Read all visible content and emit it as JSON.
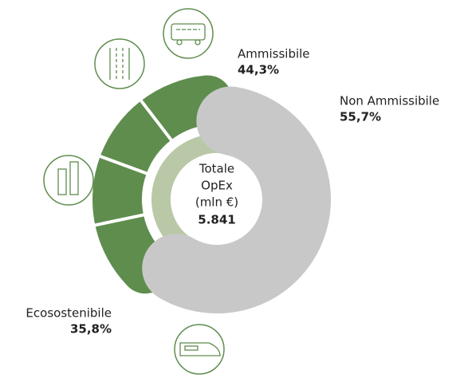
{
  "chart_data": {
    "type": "donut",
    "categories": [
      "Ammissibile",
      "Non Ammissibile"
    ],
    "values": [
      44.3,
      55.7
    ],
    "value_labels": [
      "44,3%",
      "55,7%"
    ],
    "colors": [
      "#b9c8a6",
      "#c8c8c8"
    ],
    "eco": {
      "name": "Ecosostenibile",
      "value": 35.8,
      "value_label": "35,8%",
      "color": "#5f8d4e"
    },
    "center_label": [
      "Totale",
      "OpEx",
      "(mln €)"
    ],
    "total": 5841,
    "total_label": "5.841"
  }
}
